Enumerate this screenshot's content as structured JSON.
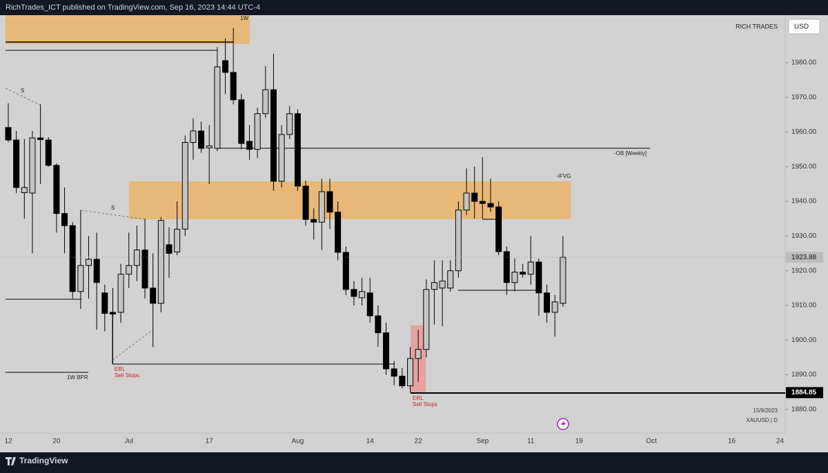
{
  "header": {
    "publisher": "RichTrades_ICT published on TradingView.com, Sep 16, 2023 14:44 UTC-4",
    "brand_top": "RICH TRADES",
    "currency": "USD",
    "footer_brand": "TradingView"
  },
  "chart_data": {
    "type": "candlestick",
    "symbol": "XAUUSD | D",
    "date": "15/9/2023",
    "up_color": "#c4c4c4",
    "down_color": "#000000",
    "wick_color": "#000000",
    "grid": false,
    "ylim": [
      1873.2,
      1993.7
    ],
    "yticks": [
      {
        "value": 1880,
        "label": "1880.00"
      },
      {
        "value": 1890,
        "label": "1890.00"
      },
      {
        "value": 1900,
        "label": "1900.00"
      },
      {
        "value": 1910,
        "label": "1910.00"
      },
      {
        "value": 1920,
        "label": "1920.00"
      },
      {
        "value": 1930,
        "label": "1930.00"
      },
      {
        "value": 1940,
        "label": "1940.00"
      },
      {
        "value": 1950,
        "label": "1950.00"
      },
      {
        "value": 1960,
        "label": "1960.00"
      },
      {
        "value": 1970,
        "label": "1970.00"
      },
      {
        "value": 1980,
        "label": "1980.00"
      }
    ],
    "last_price": 1923.88,
    "level_price": 1884.85,
    "categories": [
      "12",
      null,
      null,
      null,
      null,
      null,
      "20",
      null,
      null,
      null,
      null,
      null,
      null,
      null,
      null,
      "Jul",
      null,
      null,
      null,
      null,
      null,
      null,
      null,
      null,
      null,
      "17",
      null,
      null,
      null,
      null,
      null,
      null,
      null,
      null,
      null,
      null,
      "Aug",
      null,
      null,
      null,
      null,
      null,
      null,
      null,
      null,
      "14",
      null,
      null,
      null,
      null,
      null,
      "22",
      null,
      null,
      null,
      null,
      null,
      null,
      null,
      "Sep",
      null,
      null,
      null,
      null,
      null,
      "11",
      null,
      null,
      null,
      null,
      null,
      "19",
      null,
      null,
      null,
      null,
      null,
      null,
      null,
      null,
      "Oct",
      null,
      null,
      null,
      null,
      null,
      null,
      null,
      null,
      null,
      "16",
      null,
      null,
      null,
      null,
      null,
      "24"
    ],
    "open": [
      1961.3,
      1957.7,
      1942.5,
      1942.4,
      1958.3,
      1957.7,
      1950.4,
      1936.5,
      1933,
      1914,
      1921.5,
      1923.3,
      1913.6,
      1908,
      1908,
      1919,
      1921.5,
      1926,
      1915,
      1910.6,
      1927.5,
      1925.4,
      1932,
      1957,
      1960.3,
      1955.4,
      1955.3,
      1980.6,
      1977.2,
      1969.3,
      1957.3,
      1955,
      1965.3,
      1972.2,
      1945.8,
      1959.3,
      1965.3,
      1944.4,
      1934.8,
      1934,
      1942.8,
      1936.9,
      1925.3,
      1914.6,
      1912.2,
      1913.6,
      1907,
      1902.1,
      1891.7,
      1889.6,
      1886.8,
      1894.7,
      1897.3,
      1914.6,
      1915,
      1915,
      1920,
      1937.5,
      1942.4,
      1940,
      1939.4,
      1938.4,
      1925.5,
      1916.6,
      1919.6,
      1919,
      1922.5,
      1913.6,
      1908,
      1910.6,
      null,
      null,
      null,
      null,
      null,
      null,
      null,
      null,
      null,
      null,
      null,
      null,
      null,
      null,
      null,
      null,
      null,
      null,
      null,
      null,
      null,
      null,
      null,
      null,
      null,
      null,
      null
    ],
    "high": [
      1968.3,
      1960.3,
      1958,
      1960.3,
      1968,
      1958.5,
      1951,
      1944,
      1934,
      1937.5,
      1930,
      1931,
      1916,
      1915,
      1922,
      1931,
      1933,
      1935,
      1925,
      1935.5,
      1932.5,
      1940,
      1959,
      1964,
      1963,
      1962,
      1984.5,
      1987,
      1990,
      1971,
      1962,
      1967,
      1979,
      1982.6,
      1962,
      1967.5,
      1966.5,
      1946,
      1938,
      1946.5,
      1946.5,
      1940,
      1927,
      1917,
      1918,
      1918,
      1910,
      1905,
      1894,
      1892,
      1898,
      1903,
      1917.5,
      1923,
      1923,
      1923,
      1940,
      1949.5,
      1950,
      1952.8,
      1946.5,
      1940,
      1927,
      1923.5,
      1922,
      1930,
      1923.5,
      1916,
      1913,
      1930,
      null,
      null,
      null,
      null,
      null,
      null,
      null,
      null,
      null,
      null,
      null,
      null,
      null,
      null,
      null,
      null,
      null,
      null,
      null,
      null,
      null,
      null,
      null,
      null,
      null,
      null,
      null
    ],
    "low": [
      1957.1,
      1942.4,
      1935,
      1925,
      1945,
      1950,
      1931,
      1925,
      1912,
      1909,
      1912,
      1903,
      1902.5,
      1893.1,
      1905,
      1915,
      1917,
      1912,
      1898,
      1908,
      1918,
      1924.5,
      1930,
      1952,
      1954,
      1945,
      1954.5,
      1971,
      1968,
      1955,
      1952,
      1952.5,
      1964,
      1943,
      1944,
      1958,
      1943,
      1933,
      1929,
      1926,
      1932,
      1923,
      1913,
      1910,
      1910,
      1905,
      1898,
      1890,
      1887,
      1886,
      1884.85,
      1888,
      1895,
      1904.5,
      1904,
      1914,
      1918,
      1936,
      1935,
      1935,
      1937,
      1924.5,
      1913,
      1914,
      1918,
      1916,
      1907,
      1905,
      1901,
      1909.6,
      null,
      null,
      null,
      null,
      null,
      null,
      null,
      null,
      null,
      null,
      null,
      null,
      null,
      null,
      null,
      null,
      null,
      null,
      null,
      null,
      null,
      null,
      null,
      null,
      null,
      null,
      null
    ],
    "close": [
      1957.7,
      1944,
      1944,
      1958.3,
      1957.8,
      1950.4,
      1936.5,
      1933,
      1914,
      1921.5,
      1923.3,
      1916.6,
      1907.7,
      1907.5,
      1919,
      1921.5,
      1926,
      1915,
      1910.6,
      1934.5,
      1925,
      1932,
      1957,
      1960.3,
      1955.3,
      1956,
      1978.8,
      1977.2,
      1969.3,
      1956.7,
      1955,
      1965.3,
      1972.2,
      1945.8,
      1959.3,
      1965.3,
      1944.4,
      1934.8,
      1934,
      1942.8,
      1936.9,
      1925.3,
      1914.6,
      1912.6,
      1914,
      1907,
      1902.1,
      1891.7,
      1889.6,
      1886.8,
      1894.7,
      1897.3,
      1914.6,
      1916.6,
      1917,
      1920,
      1937.5,
      1942.4,
      1940,
      1939.4,
      1938.4,
      1925.5,
      1916.6,
      1919.6,
      1919,
      1922.5,
      1913.6,
      1908,
      1911,
      1923.88,
      null,
      null,
      null,
      null,
      null,
      null,
      null,
      null,
      null,
      null,
      null,
      null,
      null,
      null,
      null,
      null,
      null,
      null,
      null,
      null,
      null,
      null,
      null,
      null,
      null,
      null,
      null
    ],
    "annotations": {
      "zone_1w": "1W",
      "ob": "-OB [Weekly]",
      "ifvg": "-IFVG",
      "s_left": "S",
      "s_mid": "S",
      "bpr": "1W BPR",
      "erl_left": "ERL",
      "sell_left": "Sell Stops",
      "erl_right": "ERL",
      "sell_right": "Sell Stops"
    }
  }
}
